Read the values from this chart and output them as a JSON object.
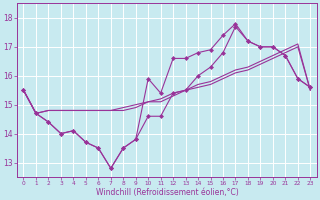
{
  "xlabel": "Windchill (Refroidissement éolien,°C)",
  "background_color": "#c8eaf0",
  "grid_color": "#ffffff",
  "line_color": "#993399",
  "xlim": [
    -0.5,
    23.5
  ],
  "ylim": [
    12.5,
    18.5
  ],
  "yticks": [
    13,
    14,
    15,
    16,
    17,
    18
  ],
  "xticks": [
    0,
    1,
    2,
    3,
    4,
    5,
    6,
    7,
    8,
    9,
    10,
    11,
    12,
    13,
    14,
    15,
    16,
    17,
    18,
    19,
    20,
    21,
    22,
    23
  ],
  "series": [
    [
      15.5,
      14.7,
      14.4,
      14.0,
      14.1,
      13.7,
      13.5,
      12.8,
      13.5,
      13.8,
      15.9,
      15.4,
      16.6,
      16.6,
      16.8,
      16.9,
      17.4,
      17.8,
      17.2,
      17.0,
      17.0,
      16.7,
      15.9,
      15.6
    ],
    [
      15.5,
      14.7,
      14.8,
      14.8,
      14.8,
      14.8,
      14.8,
      14.8,
      14.8,
      14.9,
      15.1,
      15.1,
      15.3,
      15.5,
      15.6,
      15.7,
      15.9,
      16.1,
      16.2,
      16.4,
      16.6,
      16.8,
      17.0,
      15.5
    ],
    [
      15.5,
      14.7,
      14.8,
      14.8,
      14.8,
      14.8,
      14.8,
      14.8,
      14.9,
      15.0,
      15.1,
      15.2,
      15.4,
      15.5,
      15.7,
      15.8,
      16.0,
      16.2,
      16.3,
      16.5,
      16.7,
      16.9,
      17.1,
      15.5
    ],
    [
      15.5,
      14.7,
      14.4,
      14.0,
      14.1,
      13.7,
      13.5,
      12.8,
      13.5,
      13.8,
      14.6,
      14.6,
      15.4,
      15.5,
      16.0,
      16.3,
      16.8,
      17.7,
      17.2,
      17.0,
      17.0,
      16.7,
      15.9,
      15.6
    ]
  ],
  "marker_series": [
    0,
    3
  ],
  "marker": "D",
  "markersize": 2.0,
  "linewidth": 0.8,
  "xlabel_fontsize": 5.5,
  "xtick_fontsize": 4.2,
  "ytick_fontsize": 5.5
}
